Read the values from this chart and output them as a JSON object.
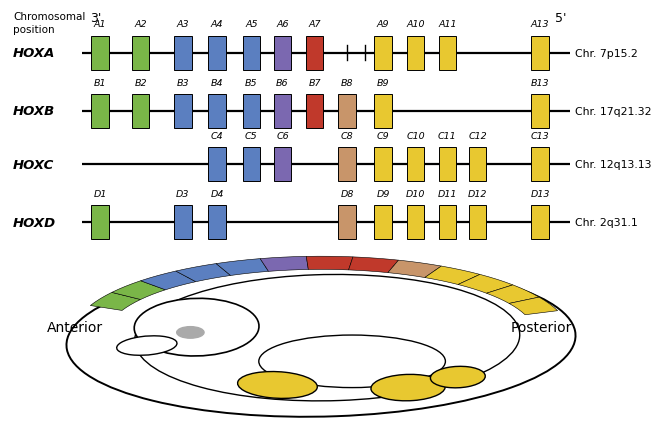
{
  "background_color": "#ffffff",
  "chromosomal_position_label": "Chromosomal\nposition",
  "three_prime": "3'",
  "five_prime": "5'",
  "anterior_label": "Anterior",
  "posterior_label": "Posterior",
  "clusters": [
    {
      "name": "HOXA",
      "chrom": "Chr. 7p15.2",
      "genes": [
        {
          "label": "A1",
          "col": 1,
          "color": "#7ab648"
        },
        {
          "label": "A2",
          "col": 2,
          "color": "#7ab648"
        },
        {
          "label": "A3",
          "col": 3,
          "color": "#5b7fc0"
        },
        {
          "label": "A4",
          "col": 4,
          "color": "#5b7fc0"
        },
        {
          "label": "A5",
          "col": 5,
          "color": "#5b7fc0"
        },
        {
          "label": "A6",
          "col": 6,
          "color": "#7b68b0"
        },
        {
          "label": "A7",
          "col": 7,
          "color": "#c0392b"
        },
        {
          "label": "A9",
          "col": 9,
          "color": "#e8c830"
        },
        {
          "label": "A10",
          "col": 10,
          "color": "#e8c830"
        },
        {
          "label": "A11",
          "col": 11,
          "color": "#e8c830"
        },
        {
          "label": "A13",
          "col": 13,
          "color": "#e8c830"
        }
      ]
    },
    {
      "name": "HOXB",
      "chrom": "Chr. 17q21.32",
      "genes": [
        {
          "label": "B1",
          "col": 1,
          "color": "#7ab648"
        },
        {
          "label": "B2",
          "col": 2,
          "color": "#7ab648"
        },
        {
          "label": "B3",
          "col": 3,
          "color": "#5b7fc0"
        },
        {
          "label": "B4",
          "col": 4,
          "color": "#5b7fc0"
        },
        {
          "label": "B5",
          "col": 5,
          "color": "#5b7fc0"
        },
        {
          "label": "B6",
          "col": 6,
          "color": "#7b68b0"
        },
        {
          "label": "B7",
          "col": 7,
          "color": "#c0392b"
        },
        {
          "label": "B8",
          "col": 8,
          "color": "#c8956a"
        },
        {
          "label": "B9",
          "col": 9,
          "color": "#e8c830"
        },
        {
          "label": "B13",
          "col": 13,
          "color": "#e8c830"
        }
      ]
    },
    {
      "name": "HOXC",
      "chrom": "Chr. 12q13.13",
      "genes": [
        {
          "label": "C4",
          "col": 4,
          "color": "#5b7fc0"
        },
        {
          "label": "C5",
          "col": 5,
          "color": "#5b7fc0"
        },
        {
          "label": "C6",
          "col": 6,
          "color": "#7b68b0"
        },
        {
          "label": "C8",
          "col": 8,
          "color": "#c8956a"
        },
        {
          "label": "C9",
          "col": 9,
          "color": "#e8c830"
        },
        {
          "label": "C10",
          "col": 10,
          "color": "#e8c830"
        },
        {
          "label": "C11",
          "col": 11,
          "color": "#e8c830"
        },
        {
          "label": "C12",
          "col": 12,
          "color": "#e8c830"
        },
        {
          "label": "C13",
          "col": 13,
          "color": "#e8c830"
        }
      ]
    },
    {
      "name": "HOXD",
      "chrom": "Chr. 2q31.1",
      "genes": [
        {
          "label": "D1",
          "col": 1,
          "color": "#7ab648"
        },
        {
          "label": "D3",
          "col": 3,
          "color": "#5b7fc0"
        },
        {
          "label": "D4",
          "col": 4,
          "color": "#5b7fc0"
        },
        {
          "label": "D8",
          "col": 8,
          "color": "#c8956a"
        },
        {
          "label": "D9",
          "col": 9,
          "color": "#e8c830"
        },
        {
          "label": "D10",
          "col": 10,
          "color": "#e8c830"
        },
        {
          "label": "D11",
          "col": 11,
          "color": "#e8c830"
        },
        {
          "label": "D12",
          "col": 12,
          "color": "#e8c830"
        },
        {
          "label": "D13",
          "col": 13,
          "color": "#e8c830"
        }
      ]
    }
  ],
  "band_colors": [
    "#7ab648",
    "#7ab648",
    "#5b7fc0",
    "#5b7fc0",
    "#5b7fc0",
    "#7b68b0",
    "#c0392b",
    "#c0392b",
    "#c8956a",
    "#e8c830",
    "#e8c830",
    "#e8c830",
    "#e8c830"
  ]
}
